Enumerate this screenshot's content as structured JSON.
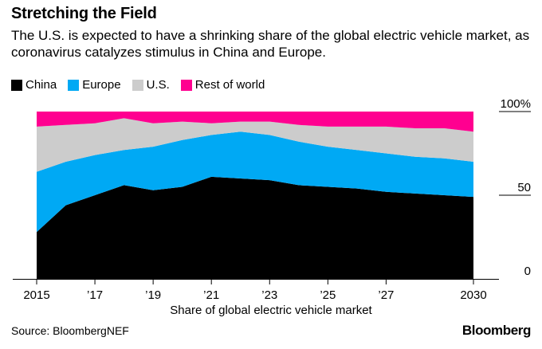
{
  "chart_data": {
    "type": "area",
    "stacked": true,
    "normalized": true,
    "title": "Stretching the Field",
    "subtitle": "The U.S. is expected to have a shrinking share of the global electric vehicle market, as coronavirus catalyzes stimulus in China and Europe.",
    "xlabel": "Share of global electric vehicle market",
    "x": [
      2015,
      2016,
      2017,
      2018,
      2019,
      2020,
      2021,
      2022,
      2023,
      2024,
      2025,
      2026,
      2027,
      2028,
      2029,
      2030
    ],
    "xticks": [
      {
        "value": 2015,
        "label": "2015"
      },
      {
        "value": 2017,
        "label": "’17"
      },
      {
        "value": 2019,
        "label": "’19"
      },
      {
        "value": 2021,
        "label": "’21"
      },
      {
        "value": 2023,
        "label": "’23"
      },
      {
        "value": 2025,
        "label": "’25"
      },
      {
        "value": 2027,
        "label": "’27"
      },
      {
        "value": 2030,
        "label": "2030"
      }
    ],
    "yticks": [
      {
        "value": 0,
        "label": "0"
      },
      {
        "value": 50,
        "label": "50"
      },
      {
        "value": 100,
        "label": "100%"
      }
    ],
    "ylim": [
      0,
      100
    ],
    "series": [
      {
        "name": "China",
        "color": "#000000",
        "values": [
          28,
          44,
          50,
          56,
          53,
          55,
          61,
          60,
          59,
          56,
          55,
          54,
          52,
          51,
          50,
          49
        ]
      },
      {
        "name": "Europe",
        "color": "#00a9f4",
        "values": [
          36,
          26,
          24,
          21,
          26,
          28,
          25,
          28,
          27,
          26,
          24,
          23,
          23,
          22,
          22,
          21
        ]
      },
      {
        "name": "U.S.",
        "color": "#cccccc",
        "values": [
          27,
          22,
          19,
          19,
          14,
          11,
          7,
          6,
          8,
          10,
          12,
          14,
          16,
          17,
          18,
          18
        ]
      },
      {
        "name": "Rest of world",
        "color": "#ff0090",
        "values": [
          9,
          8,
          7,
          4,
          7,
          6,
          7,
          6,
          6,
          8,
          9,
          9,
          9,
          10,
          10,
          12
        ]
      }
    ],
    "source": "Source: BloombergNEF",
    "brand": "Bloomberg"
  }
}
